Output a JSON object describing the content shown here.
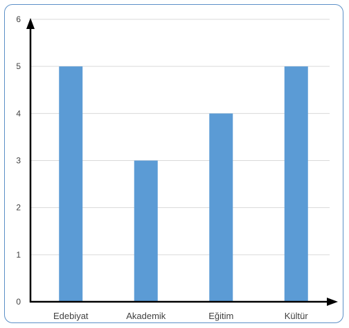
{
  "chart_data": {
    "type": "bar",
    "title": "",
    "xlabel": "",
    "ylabel": "",
    "categories": [
      "Edebiyat",
      "Akademik",
      "Eğitim",
      "Kültür"
    ],
    "values": [
      5,
      3,
      4,
      5
    ],
    "ylim": [
      0,
      6
    ],
    "yticks": [
      "0",
      "1",
      "2",
      "3",
      "4",
      "5",
      "6"
    ],
    "grid": true,
    "legend": "none",
    "colors": {
      "bar": "#5b9bd5",
      "grid": "#d9d9d9",
      "axis": "#000000",
      "frame": "#5b8fc7"
    }
  }
}
